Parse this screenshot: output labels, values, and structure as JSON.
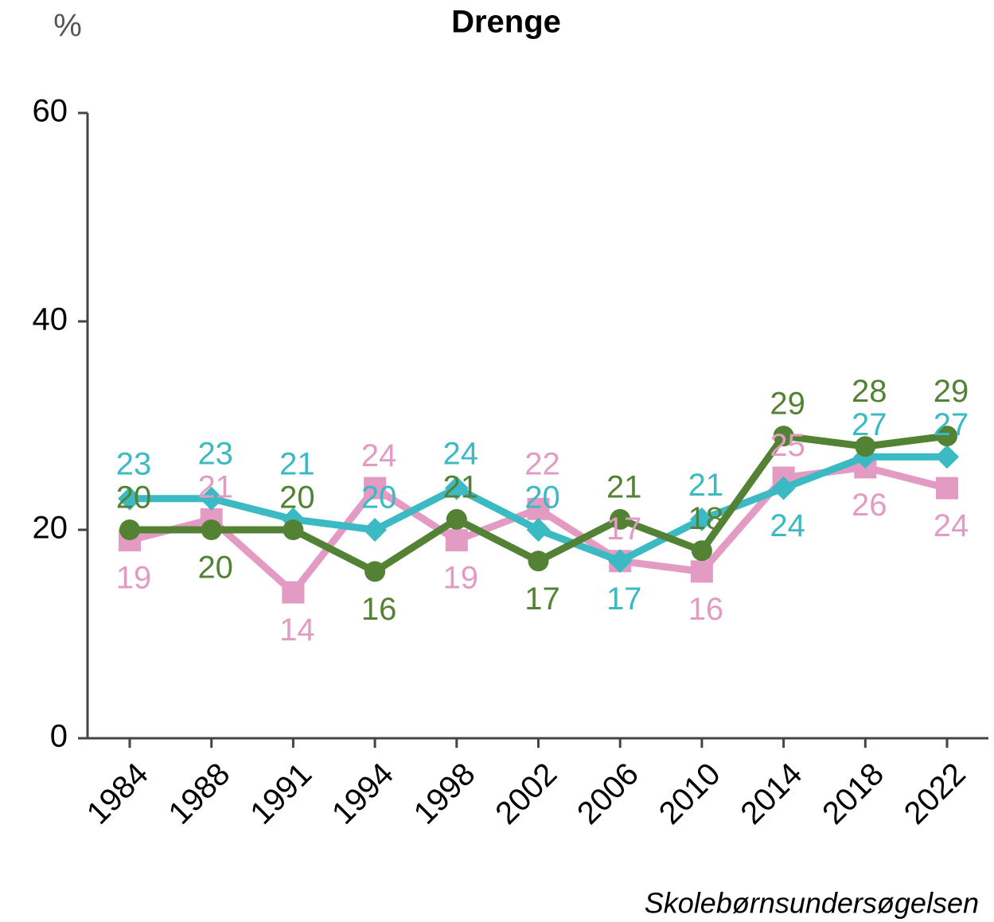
{
  "chart_data": {
    "type": "line",
    "title": "Drenge",
    "ylabel": "%",
    "source": "Skolebørnsundersøgelsen",
    "categories": [
      "1984",
      "1988",
      "1991",
      "1994",
      "1998",
      "2002",
      "2006",
      "2010",
      "2014",
      "2018",
      "2022"
    ],
    "series": [
      {
        "color": "#e39bc3",
        "marker": "square",
        "values": [
          19,
          21,
          14,
          24,
          19,
          22,
          17,
          16,
          25,
          26,
          24
        ]
      },
      {
        "color": "#3cbac4",
        "marker": "diamond",
        "values": [
          23,
          23,
          21,
          20,
          24,
          20,
          17,
          21,
          24,
          27,
          27
        ]
      },
      {
        "color": "#548235",
        "marker": "circle",
        "values": [
          20,
          20,
          20,
          16,
          21,
          17,
          21,
          18,
          29,
          28,
          29
        ]
      }
    ],
    "ylim": [
      0,
      60
    ],
    "yticks": [
      0,
      20,
      40,
      60
    ],
    "grid": false,
    "data_labels": true
  }
}
